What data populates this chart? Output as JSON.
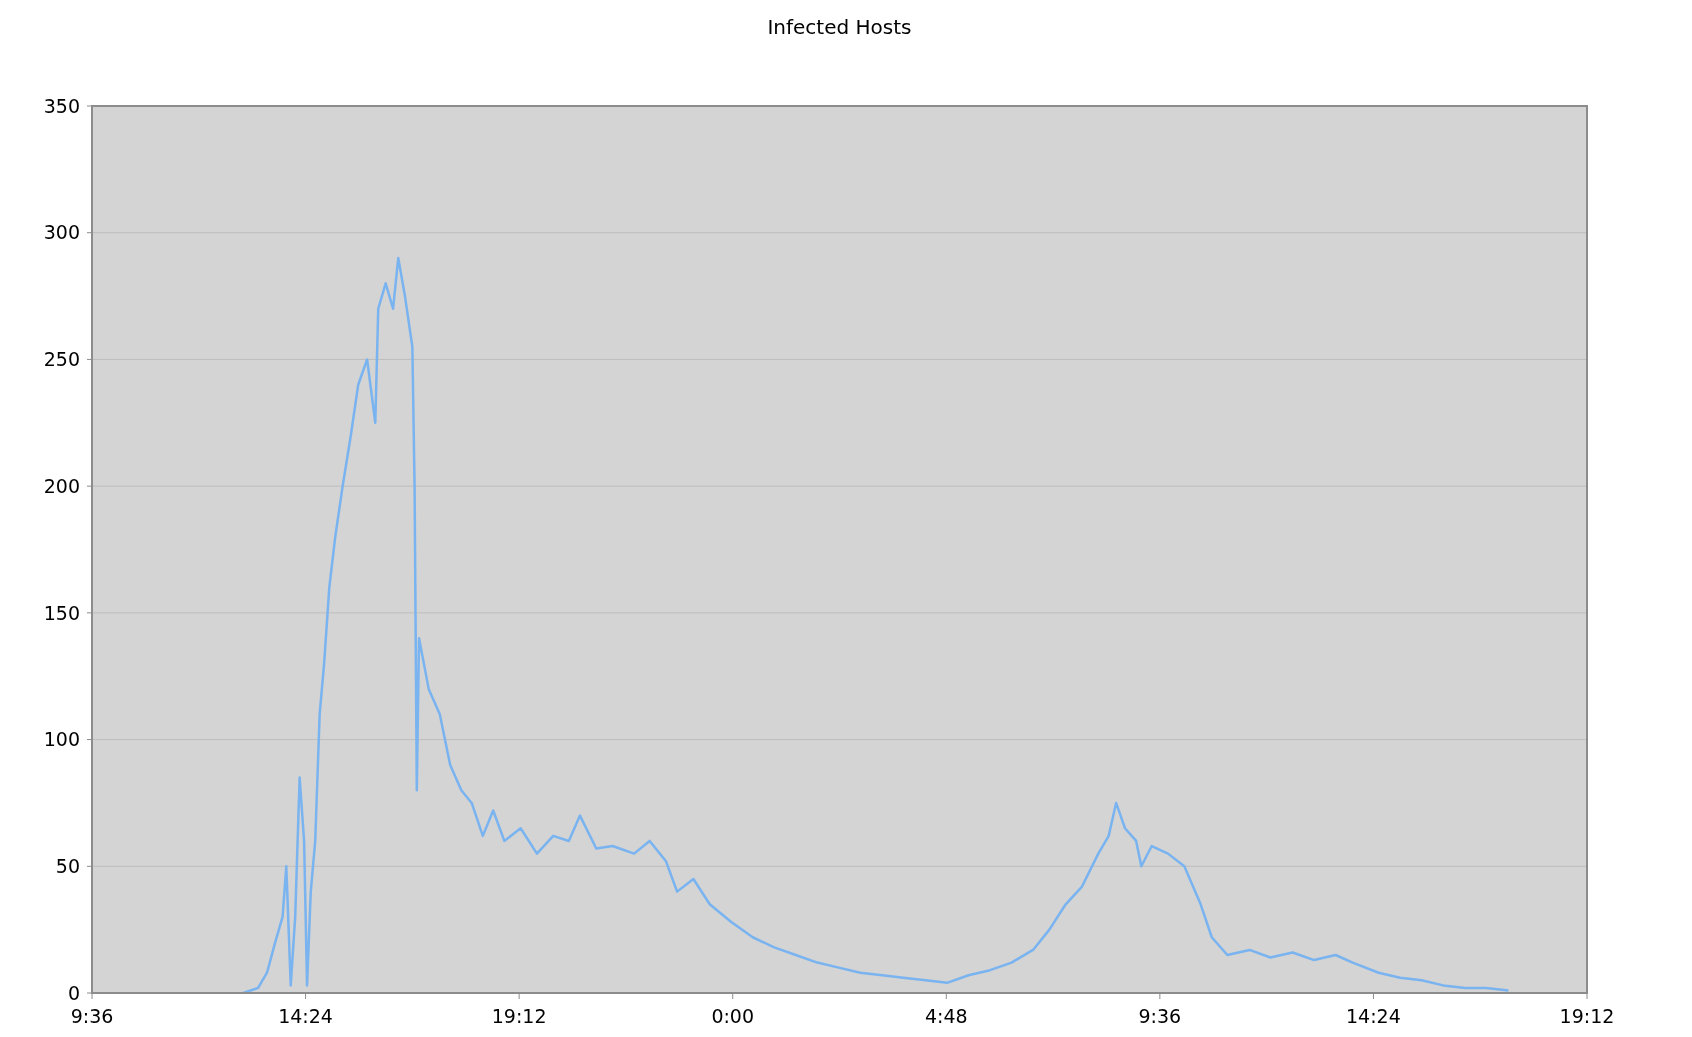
{
  "chart_data": {
    "type": "line",
    "title": "Infected Hosts",
    "x": [
      "2000-01-01T13:00",
      "2000-01-01T13:20",
      "2000-01-01T13:32",
      "2000-01-01T13:43",
      "2000-01-01T13:53",
      "2000-01-01T13:58",
      "2000-01-01T14:04",
      "2000-01-01T14:10",
      "2000-01-01T14:16",
      "2000-01-01T14:22",
      "2000-01-01T14:26",
      "2000-01-01T14:31",
      "2000-01-01T14:37",
      "2000-01-01T14:43",
      "2000-01-01T14:49",
      "2000-01-01T14:56",
      "2000-01-01T15:04",
      "2000-01-01T15:14",
      "2000-01-01T15:25",
      "2000-01-01T15:35",
      "2000-01-01T15:47",
      "2000-01-01T15:58",
      "2000-01-01T16:02",
      "2000-01-01T16:12",
      "2000-01-01T16:22",
      "2000-01-01T16:29",
      "2000-01-01T16:38",
      "2000-01-01T16:48",
      "2000-01-01T16:51",
      "2000-01-01T16:54",
      "2000-01-01T16:57",
      "2000-01-01T17:10",
      "2000-01-01T17:25",
      "2000-01-01T17:39",
      "2000-01-01T17:54",
      "2000-01-01T18:08",
      "2000-01-01T18:23",
      "2000-01-01T18:37",
      "2000-01-01T18:52",
      "2000-01-01T19:14",
      "2000-01-01T19:36",
      "2000-01-01T19:58",
      "2000-01-01T20:19",
      "2000-01-01T20:34",
      "2000-01-01T20:56",
      "2000-01-01T21:18",
      "2000-01-01T21:47",
      "2000-01-01T22:08",
      "2000-01-01T22:30",
      "2000-01-01T22:45",
      "2000-01-01T23:07",
      "2000-01-01T23:29",
      "2000-01-01T23:58",
      "2000-01-02T00:27",
      "2000-01-02T00:56",
      "2000-01-02T01:25",
      "2000-01-02T01:54",
      "2000-01-02T02:23",
      "2000-01-02T02:52",
      "2000-01-02T03:22",
      "2000-01-02T03:50",
      "2000-01-02T04:20",
      "2000-01-02T04:49",
      "2000-01-02T05:18",
      "2000-01-02T05:47",
      "2000-01-02T06:16",
      "2000-01-02T06:45",
      "2000-01-02T07:07",
      "2000-01-02T07:29",
      "2000-01-02T07:51",
      "2000-01-02T08:13",
      "2000-01-02T08:27",
      "2000-01-02T08:37",
      "2000-01-02T08:49",
      "2000-01-02T09:04",
      "2000-01-02T09:11",
      "2000-01-02T09:25",
      "2000-01-02T09:47",
      "2000-01-02T10:09",
      "2000-01-02T10:31",
      "2000-01-02T10:46",
      "2000-01-02T11:07",
      "2000-01-02T11:37",
      "2000-01-02T12:05",
      "2000-01-02T12:35",
      "2000-01-02T13:04",
      "2000-01-02T13:33",
      "2000-01-02T13:56",
      "2000-01-02T14:31",
      "2000-01-02T15:00",
      "2000-01-02T15:29",
      "2000-01-02T15:58",
      "2000-01-02T16:28",
      "2000-01-02T16:56",
      "2000-01-02T17:26"
    ],
    "series": [
      {
        "color": "#79b3f0",
        "values": [
          0,
          2,
          8,
          20,
          30,
          50,
          3,
          30,
          85,
          60,
          3,
          40,
          60,
          110,
          130,
          160,
          180,
          200,
          220,
          240,
          250,
          225,
          270,
          280,
          270,
          290,
          275,
          255,
          200,
          80,
          140,
          120,
          110,
          90,
          80,
          75,
          62,
          72,
          60,
          65,
          55,
          62,
          60,
          70,
          57,
          58,
          55,
          60,
          52,
          40,
          45,
          35,
          28,
          22,
          18,
          15,
          12,
          10,
          8,
          7,
          6,
          5,
          4,
          7,
          9,
          12,
          17,
          25,
          35,
          42,
          55,
          62,
          75,
          65,
          60,
          50,
          58,
          55,
          50,
          35,
          22,
          15,
          17,
          14,
          16,
          13,
          15,
          12,
          8,
          6,
          5,
          3,
          2,
          2,
          1
        ]
      }
    ],
    "xlim": [
      "2000-01-01T09:36",
      "2000-01-02T19:12"
    ],
    "xticks": [
      {
        "value": "2000-01-01T09:36",
        "label": "9:36"
      },
      {
        "value": "2000-01-01T14:24",
        "label": "14:24"
      },
      {
        "value": "2000-01-01T19:12",
        "label": "19:12"
      },
      {
        "value": "2000-01-02T00:00",
        "label": "0:00"
      },
      {
        "value": "2000-01-02T04:48",
        "label": "4:48"
      },
      {
        "value": "2000-01-02T09:36",
        "label": "9:36"
      },
      {
        "value": "2000-01-02T14:24",
        "label": "14:24"
      },
      {
        "value": "2000-01-02T19:12",
        "label": "19:12"
      }
    ],
    "ylim": [
      0,
      350
    ],
    "yticks": [
      0,
      50,
      100,
      150,
      200,
      250,
      300,
      350
    ],
    "grid": "y",
    "marker": "none",
    "line_style": "solid"
  }
}
